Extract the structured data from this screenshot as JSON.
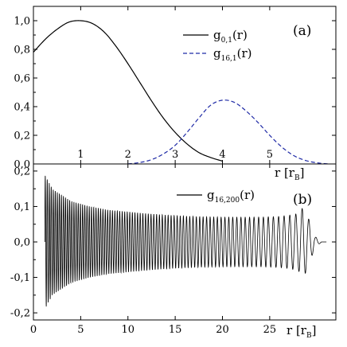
{
  "chart_data": [
    {
      "id": "a",
      "type": "line",
      "panel_label": "(a)",
      "xlabel": "r [r",
      "xlabel_sub": "B",
      "xlabel_close": "]",
      "xlim": [
        0,
        6.4
      ],
      "ylim": [
        0.0,
        1.1
      ],
      "x_ticks": [
        {
          "v": 1,
          "label": "1"
        },
        {
          "v": 2,
          "label": "2"
        },
        {
          "v": 3,
          "label": "3"
        },
        {
          "v": 4,
          "label": "4"
        },
        {
          "v": 5,
          "label": "5"
        }
      ],
      "y_ticks": [
        {
          "v": 0.0,
          "label": "0,0"
        },
        {
          "v": 0.2,
          "label": "0,2"
        },
        {
          "v": 0.4,
          "label": "0,4"
        },
        {
          "v": 0.6,
          "label": "0,6"
        },
        {
          "v": 0.8,
          "label": "0,8"
        },
        {
          "v": 1.0,
          "label": "1,0"
        }
      ],
      "legend_position": "top-right",
      "series": [
        {
          "name": "g",
          "name_sub": "0,1",
          "name_suffix": "(r)",
          "color": "#000000",
          "dash": "solid",
          "x": [
            0.0,
            0.25,
            0.5,
            0.75,
            1.0,
            1.25,
            1.5,
            1.75,
            2.0,
            2.25,
            2.5,
            2.75,
            3.0,
            3.25,
            3.5,
            3.75,
            4.0
          ],
          "y": [
            0.78,
            0.87,
            0.94,
            0.99,
            1.0,
            0.98,
            0.92,
            0.82,
            0.7,
            0.57,
            0.44,
            0.32,
            0.22,
            0.14,
            0.08,
            0.045,
            0.02
          ]
        },
        {
          "name": "g",
          "name_sub": "16,1",
          "name_suffix": "(r)",
          "color": "#1f2aa6",
          "dash": "dashed",
          "x": [
            2.0,
            2.25,
            2.5,
            2.75,
            3.0,
            3.25,
            3.5,
            3.75,
            4.0,
            4.25,
            4.5,
            4.75,
            5.0,
            5.25,
            5.5,
            5.75,
            6.0,
            6.25
          ],
          "y": [
            0.0,
            0.01,
            0.03,
            0.07,
            0.13,
            0.22,
            0.32,
            0.41,
            0.445,
            0.43,
            0.37,
            0.29,
            0.2,
            0.12,
            0.06,
            0.025,
            0.008,
            0.0
          ]
        }
      ]
    },
    {
      "id": "b",
      "type": "line",
      "panel_label": "(b)",
      "xlabel": "r [r",
      "xlabel_sub": "B",
      "xlabel_close": "]",
      "xlim": [
        0,
        32
      ],
      "ylim": [
        -0.22,
        0.22
      ],
      "x_ticks": [
        {
          "v": 0,
          "label": "0"
        },
        {
          "v": 5,
          "label": "5"
        },
        {
          "v": 10,
          "label": "10"
        },
        {
          "v": 15,
          "label": "15"
        },
        {
          "v": 20,
          "label": "20"
        },
        {
          "v": 25,
          "label": "25"
        }
      ],
      "y_ticks": [
        {
          "v": -0.2,
          "label": "-0,2"
        },
        {
          "v": -0.1,
          "label": "-0,1"
        },
        {
          "v": 0.0,
          "label": "0,0"
        },
        {
          "v": 0.1,
          "label": "0,1"
        },
        {
          "v": 0.2,
          "label": "0,2"
        }
      ],
      "legend_position": "top-right",
      "series": [
        {
          "name": "g",
          "name_sub": "16,200",
          "name_suffix": "(r)",
          "color": "#000000",
          "dash": "solid",
          "waveform": "oscillatory",
          "x_start": 1.2,
          "x_end": 30.5,
          "envelope": {
            "r": [
              1.2,
              2,
              4,
              6,
              8,
              10,
              12,
              14,
              16,
              18,
              20,
              22,
              24,
              26,
              27,
              28,
              28.6,
              29.2,
              29.8,
              30.5
            ],
            "amp": [
              0.19,
              0.15,
              0.115,
              0.1,
              0.09,
              0.085,
              0.08,
              0.076,
              0.073,
              0.071,
              0.07,
              0.07,
              0.07,
              0.072,
              0.075,
              0.08,
              0.1,
              0.06,
              0.015,
              0.0
            ]
          },
          "oscillation_count": 88
        }
      ]
    }
  ]
}
